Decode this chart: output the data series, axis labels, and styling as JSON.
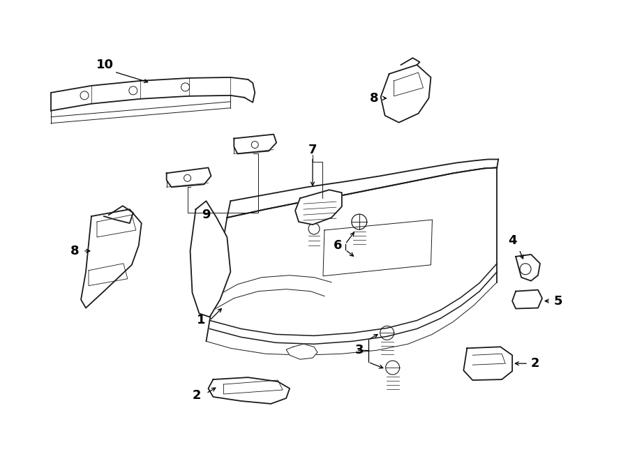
{
  "bg_color": "#ffffff",
  "line_color": "#1a1a1a",
  "lw_thick": 1.3,
  "lw_thin": 0.7,
  "label_fontsize": 13,
  "figsize": [
    9.0,
    6.61
  ],
  "dpi": 100
}
